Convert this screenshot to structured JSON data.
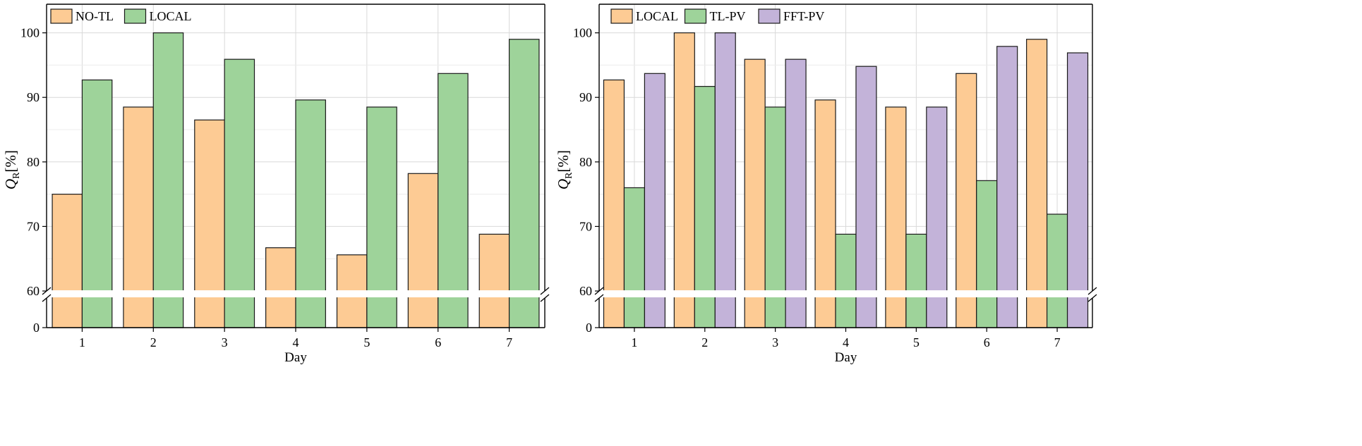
{
  "chart_data": [
    {
      "type": "bar",
      "title": "",
      "xlabel": "Day",
      "ylabel_main": "Q",
      "ylabel_sub": "R",
      "ylabel_unit": "[%]",
      "categories": [
        "1",
        "2",
        "3",
        "4",
        "5",
        "6",
        "7"
      ],
      "series": [
        {
          "name": "NO-TL",
          "color": "#fdcb94",
          "values": [
            75.0,
            88.5,
            86.5,
            66.7,
            65.6,
            78.2,
            68.8
          ]
        },
        {
          "name": "LOCAL",
          "color": "#9ed39a",
          "values": [
            92.7,
            100.0,
            95.9,
            89.6,
            88.5,
            93.7,
            99.0
          ]
        }
      ],
      "yticks": [
        0,
        60,
        70,
        80,
        90,
        100
      ],
      "ylim": [
        0,
        105
      ],
      "axis_break": [
        0,
        60
      ],
      "grid": true,
      "legend_position": "top-left"
    },
    {
      "type": "bar",
      "title": "",
      "xlabel": "Day",
      "ylabel_main": "Q",
      "ylabel_sub": "R",
      "ylabel_unit": "[%]",
      "categories": [
        "1",
        "2",
        "3",
        "4",
        "5",
        "6",
        "7"
      ],
      "series": [
        {
          "name": "LOCAL",
          "color": "#fdcb94",
          "values": [
            92.7,
            100.0,
            95.9,
            89.6,
            88.5,
            93.7,
            99.0
          ]
        },
        {
          "name": "TL-PV",
          "color": "#9ed39a",
          "values": [
            76.0,
            91.7,
            88.5,
            68.8,
            68.8,
            77.1,
            71.9
          ]
        },
        {
          "name": "FFT-PV",
          "color": "#c3b3d9",
          "values": [
            93.7,
            100.0,
            95.9,
            94.8,
            88.5,
            97.9,
            96.9
          ]
        }
      ],
      "yticks": [
        0,
        60,
        70,
        80,
        90,
        100
      ],
      "ylim": [
        0,
        105
      ],
      "axis_break": [
        0,
        60
      ],
      "grid": true,
      "legend_position": "top-left"
    }
  ]
}
